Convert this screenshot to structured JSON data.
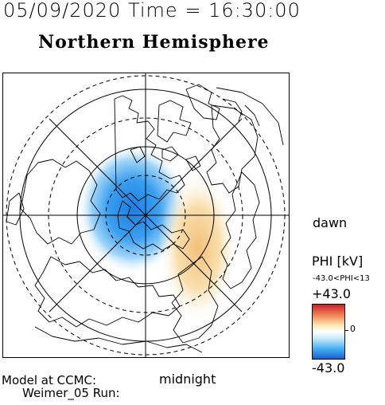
{
  "header": {
    "datetime": "05/09/2020 Time = 16:30:00"
  },
  "map": {
    "title": "Northern Hemisphere",
    "projection": "polar-stereographic",
    "pole": "north-geomagnetic",
    "features": [
      "coastlines",
      "latitude-circles",
      "meridians"
    ],
    "side_labels": {
      "dawn": "dawn",
      "midnight": "midnight"
    },
    "potential_cells": [
      {
        "sign": "negative",
        "color": "#1e88e5",
        "position": "dusk-side"
      },
      {
        "sign": "positive",
        "color": "#f5c27a",
        "position": "dawn-side"
      }
    ]
  },
  "colorbar": {
    "title": "PHI [kV]",
    "range_text": "-43.0<PHI<13",
    "max_label": "+43.0",
    "min_label": "-43.0",
    "zero_label": "0",
    "colors": {
      "max": "#c2262b",
      "zero": "#ffffff",
      "min": "#1c5ed0"
    }
  },
  "footer": {
    "line1": "Model at CCMC:",
    "line2": "Weimer_05 Run:"
  }
}
